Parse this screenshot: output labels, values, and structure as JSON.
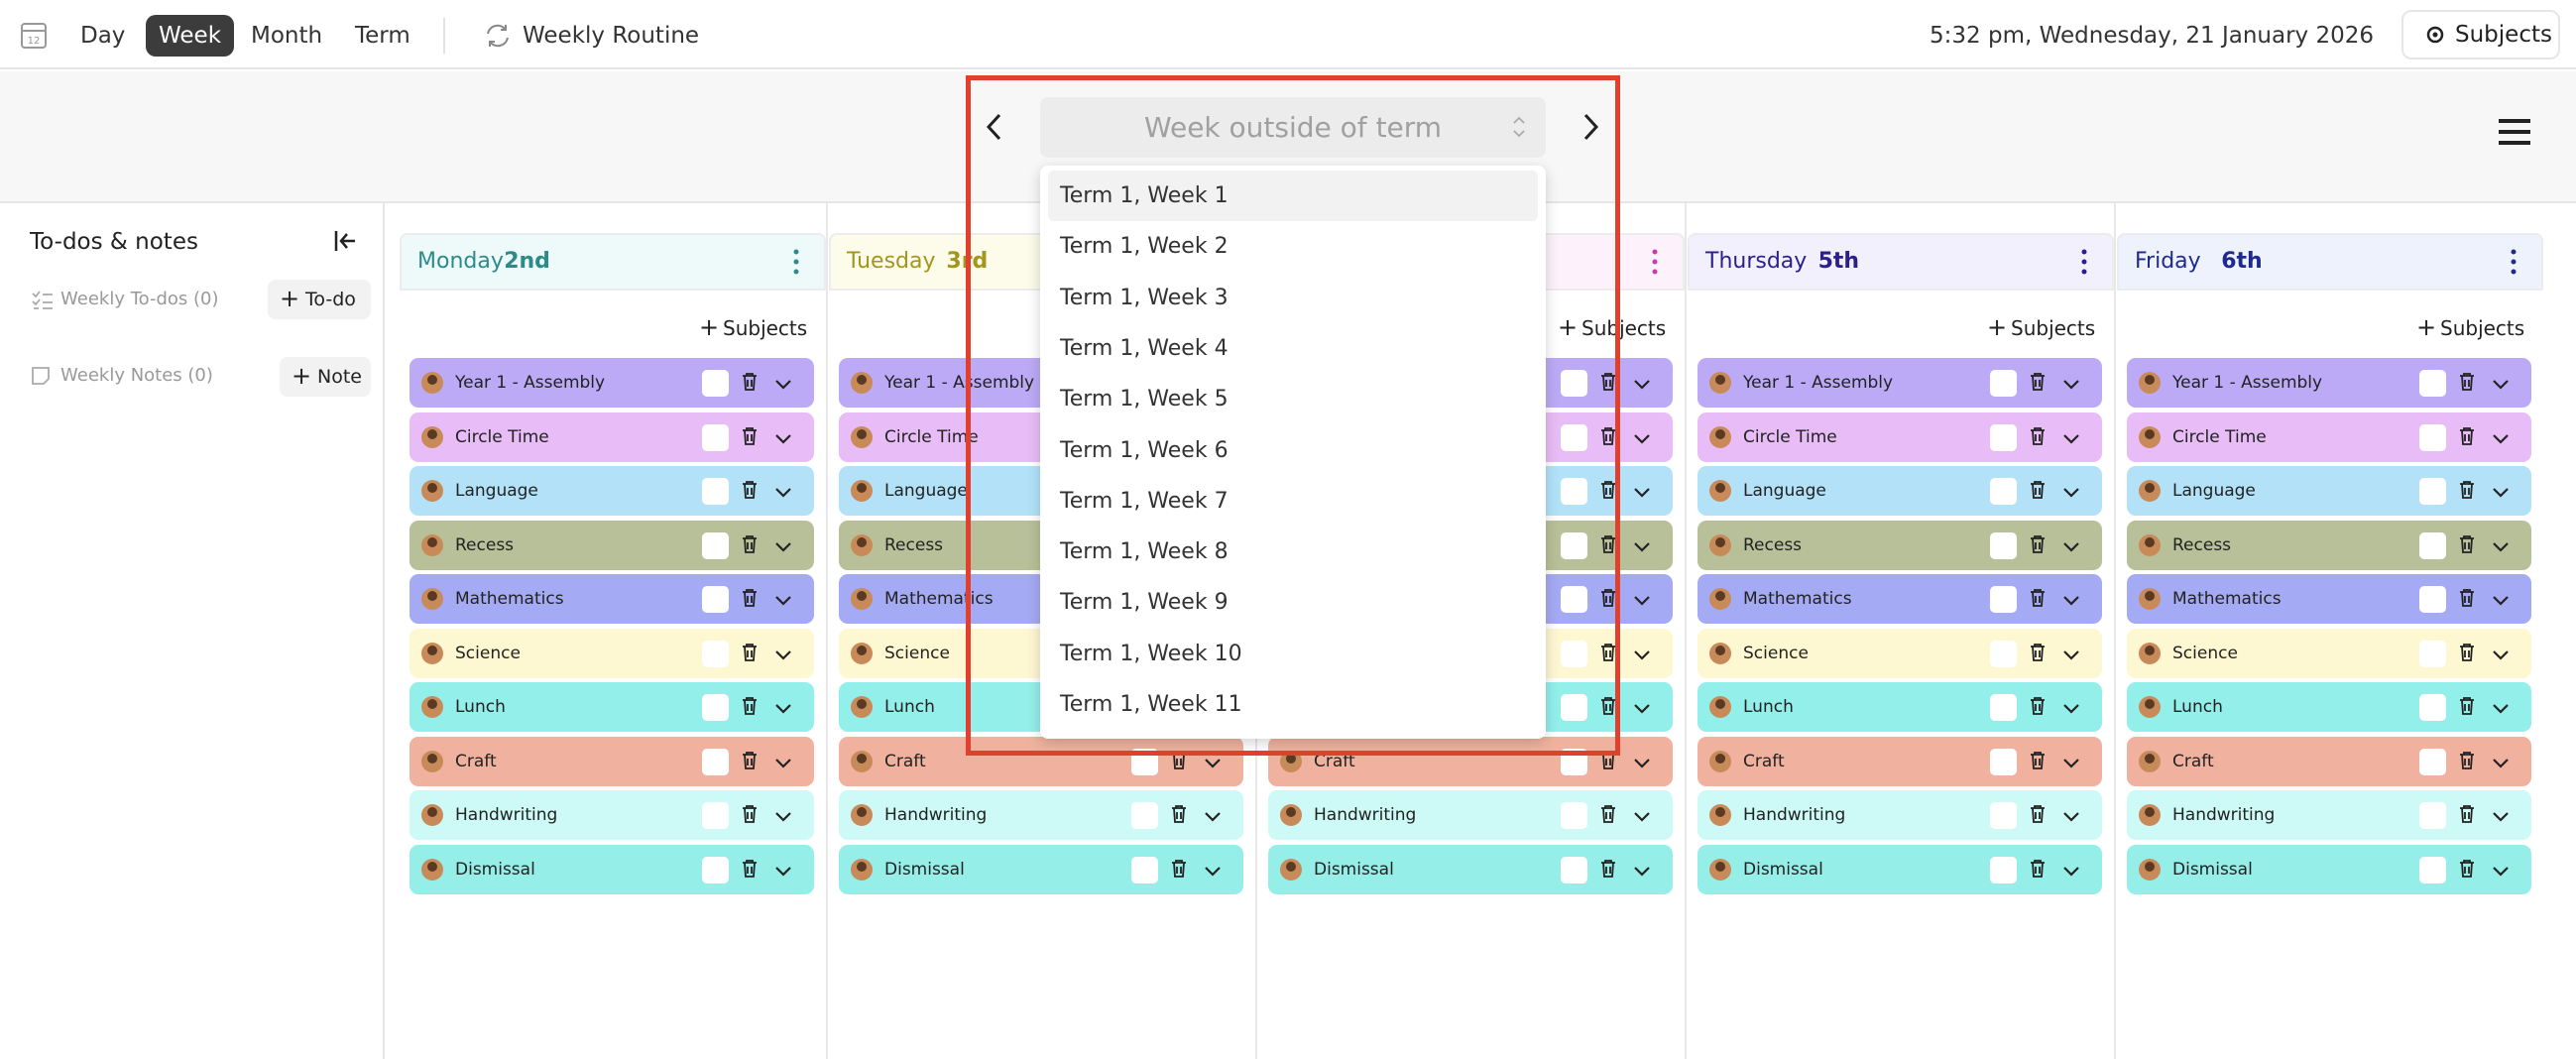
{
  "top_bar": {
    "views": [
      "Day",
      "Week",
      "Month",
      "Term"
    ],
    "active_view": "Week",
    "routine": "Weekly Routine",
    "datetime": "5:32 pm, Wednesday, 21 January 2026",
    "subjects_button": "Subjects"
  },
  "week_selector": {
    "placeholder": "Week outside of term",
    "options": [
      "Term 1, Week 1",
      "Term 1, Week 2",
      "Term 1, Week 3",
      "Term 1, Week 4",
      "Term 1, Week 5",
      "Term 1, Week 6",
      "Term 1, Week 7",
      "Term 1, Week 8",
      "Term 1, Week 9",
      "Term 1, Week 10",
      "Term 1, Week 11"
    ]
  },
  "sidebar": {
    "title": "To-dos & notes",
    "todos": "Weekly To-dos (0)",
    "todo_button": "To-do",
    "notes": "Weekly Notes (0)",
    "note_button": "Note"
  },
  "add_subjects": "Subjects",
  "days": [
    {
      "name": "Monday",
      "date": "2nd"
    },
    {
      "name": "Tuesday",
      "date": "3rd"
    },
    {
      "name": null,
      "date": null
    },
    {
      "name": "Thursday",
      "date": "5th"
    },
    {
      "name": "Friday",
      "date": "6th"
    }
  ],
  "lessons": [
    {
      "name": "Year 1 - Assembly",
      "color": "#bcaaf6"
    },
    {
      "name": "Circle Time",
      "color": "#e8bcf6"
    },
    {
      "name": "Language",
      "color": "#b3e2f8"
    },
    {
      "name": "Recess",
      "color": "#b8c09a"
    },
    {
      "name": "Mathematics",
      "color": "#a5aaf4"
    },
    {
      "name": "Science",
      "color": "#fdf7d2"
    },
    {
      "name": "Lunch",
      "color": "#93efea"
    },
    {
      "name": "Craft",
      "color": "#f0b29f"
    },
    {
      "name": "Handwriting",
      "color": "#cdfaf6"
    },
    {
      "name": "Dismissal",
      "color": "#95eee8"
    }
  ]
}
